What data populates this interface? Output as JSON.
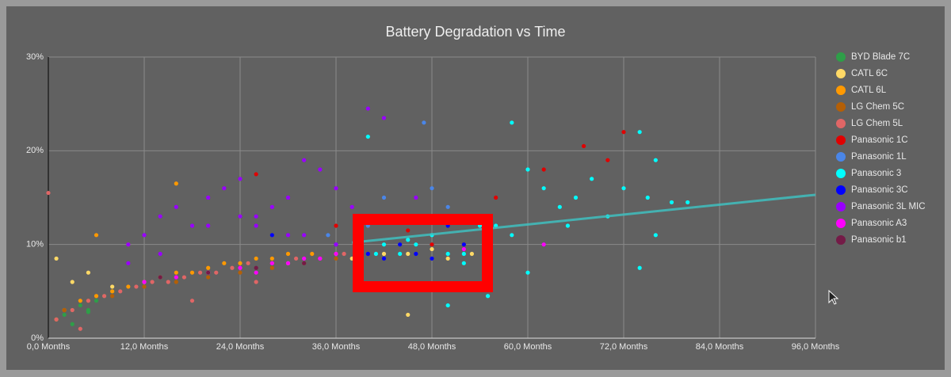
{
  "chart_data": {
    "type": "scatter",
    "title": "Battery Degradation vs Time",
    "xlim": [
      0,
      96
    ],
    "xticks": [
      {
        "value": 0,
        "label": "0,0 Months"
      },
      {
        "value": 12,
        "label": "12,0 Months"
      },
      {
        "value": 24,
        "label": "24,0 Months"
      },
      {
        "value": 36,
        "label": "36,0 Months"
      },
      {
        "value": 48,
        "label": "48,0 Months"
      },
      {
        "value": 60,
        "label": "60,0 Months"
      },
      {
        "value": 72,
        "label": "72,0 Months"
      },
      {
        "value": 84,
        "label": "84,0 Months"
      },
      {
        "value": 96,
        "label": "96,0 Months"
      }
    ],
    "ylim": [
      0,
      30
    ],
    "yticks": [
      {
        "value": 0,
        "label": "0%"
      },
      {
        "value": 10,
        "label": "10%"
      },
      {
        "value": 20,
        "label": "20%"
      },
      {
        "value": 30,
        "label": "30%"
      }
    ],
    "grid": true,
    "legend": "right",
    "series": [
      {
        "name": "BYD Blade 7C",
        "color": "#2e9e48",
        "x": [
          1,
          2,
          3,
          4,
          5,
          6,
          7,
          8,
          3,
          5
        ],
        "values": [
          2,
          2.5,
          3,
          3.5,
          3,
          4,
          4.5,
          5,
          1.5,
          2.8
        ]
      },
      {
        "name": "CATL 6C",
        "color": "#ffd966",
        "x": [
          1,
          3,
          5,
          8,
          12,
          20,
          30,
          38,
          42,
          45,
          48,
          50,
          53,
          45
        ],
        "values": [
          8.5,
          6,
          7,
          5.5,
          6,
          7,
          8,
          8.5,
          9,
          9,
          9.5,
          8.5,
          9,
          2.5
        ]
      },
      {
        "name": "CATL 6L",
        "color": "#ff9900",
        "x": [
          1,
          2,
          4,
          6,
          8,
          10,
          12,
          14,
          16,
          18,
          20,
          22,
          24,
          26,
          28,
          30,
          33,
          36,
          16,
          6
        ],
        "values": [
          2,
          3,
          4,
          4.5,
          5,
          5.5,
          6,
          6.5,
          7,
          7,
          7.5,
          8,
          8,
          8.5,
          8.5,
          9,
          9,
          9,
          16.5,
          11
        ]
      },
      {
        "name": "LG Chem 5C",
        "color": "#b45f06",
        "x": [
          2,
          5,
          8,
          12,
          16,
          20,
          24,
          28,
          32,
          36
        ],
        "values": [
          3,
          4,
          4.5,
          5.5,
          6,
          6.5,
          7,
          7.5,
          8,
          8.5
        ]
      },
      {
        "name": "LG Chem 5L",
        "color": "#e06666",
        "x": [
          0,
          1,
          3,
          5,
          7,
          9,
          11,
          13,
          15,
          17,
          19,
          21,
          23,
          25,
          28,
          31,
          34,
          37,
          10,
          18,
          26,
          4
        ],
        "values": [
          15.5,
          2,
          3,
          4,
          4.5,
          5,
          5.5,
          6,
          6,
          6.5,
          7,
          7,
          7.5,
          8,
          8,
          8.5,
          8.5,
          9,
          10,
          4,
          6,
          1
        ]
      },
      {
        "name": "Panasonic 1C",
        "color": "#e00000",
        "x": [
          26,
          36,
          45,
          48,
          52,
          56,
          58,
          62,
          67,
          70,
          72
        ],
        "values": [
          17.5,
          12,
          11.5,
          10,
          10,
          15,
          11,
          18,
          20.5,
          19,
          22
        ]
      },
      {
        "name": "Panasonic 1L",
        "color": "#4a86e8",
        "x": [
          35,
          40,
          45,
          48,
          50,
          55,
          42,
          47
        ],
        "values": [
          11,
          12,
          13,
          16,
          14,
          12,
          15,
          23
        ]
      },
      {
        "name": "Panasonic 3",
        "color": "#00ffff",
        "x": [
          40,
          42,
          44,
          46,
          48,
          50,
          52,
          54,
          56,
          58,
          60,
          62,
          64,
          66,
          68,
          70,
          72,
          74,
          76,
          78,
          45,
          50,
          52,
          58,
          60,
          65,
          75,
          80,
          74,
          76,
          41,
          55
        ],
        "values": [
          21.5,
          10,
          9,
          10,
          11,
          9,
          8,
          12,
          12,
          23,
          18,
          16,
          14,
          15,
          17,
          13,
          16,
          22,
          19,
          14.5,
          10.5,
          3.5,
          9,
          11,
          7,
          12,
          15,
          14.5,
          7.5,
          11,
          9,
          4.5
        ]
      },
      {
        "name": "Panasonic 3C",
        "color": "#0000ff",
        "x": [
          28,
          36,
          40,
          42,
          44,
          46,
          48,
          52,
          50
        ],
        "values": [
          11,
          10,
          9,
          8.5,
          10,
          9,
          8.5,
          10,
          12
        ]
      },
      {
        "name": "Panasonic 3L MIC",
        "color": "#9900ff",
        "x": [
          10,
          12,
          14,
          16,
          18,
          20,
          22,
          24,
          26,
          28,
          30,
          32,
          34,
          36,
          38,
          40,
          20,
          24,
          32,
          36,
          10,
          14,
          26,
          30,
          42,
          46
        ],
        "values": [
          10,
          11,
          13,
          14,
          12,
          15,
          16,
          17,
          13,
          14,
          15,
          19,
          18,
          16,
          14,
          24.5,
          12,
          13,
          11,
          10,
          8,
          9,
          12,
          11,
          23.5,
          15
        ]
      },
      {
        "name": "Panasonic A3",
        "color": "#ff00ff",
        "x": [
          12,
          16,
          20,
          24,
          28,
          32,
          36,
          26,
          30,
          34,
          52,
          62
        ],
        "values": [
          6,
          6.5,
          7,
          7.5,
          8,
          8.5,
          9,
          7,
          8,
          8.5,
          9.5,
          10
        ]
      },
      {
        "name": "Panasonic b1",
        "color": "#741b47",
        "x": [
          14,
          20,
          26,
          32
        ],
        "values": [
          6.5,
          7,
          7.5,
          8
        ]
      }
    ],
    "trendline": {
      "color": "#3fbfbf",
      "x": [
        38,
        96
      ],
      "values": [
        10.2,
        15.3
      ]
    }
  }
}
